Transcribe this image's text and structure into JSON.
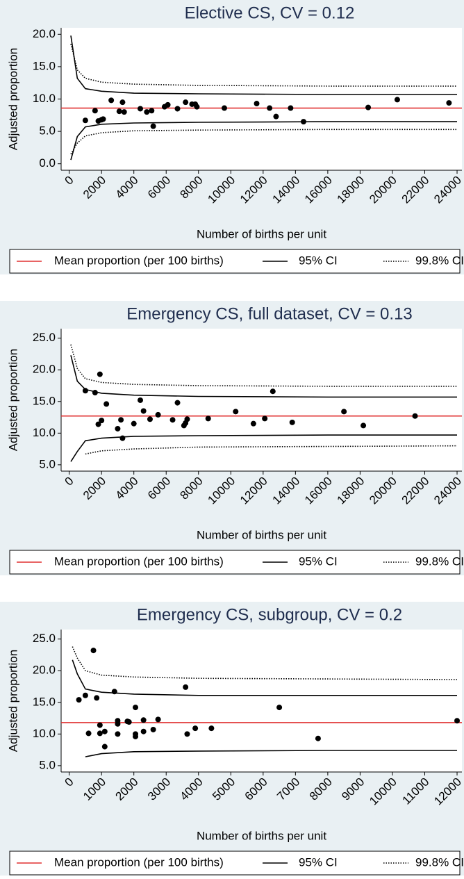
{
  "chart_data": [
    {
      "type": "funnel",
      "title": "Elective CS, CV = 0.12",
      "x_label": "Number of births per unit",
      "y_label": "Adjusted proportion",
      "xlim": [
        -500,
        24300
      ],
      "ylim": [
        -1,
        21
      ],
      "xticks": [
        0,
        2000,
        4000,
        6000,
        8000,
        10000,
        12000,
        14000,
        16000,
        18000,
        20000,
        22000,
        24000
      ],
      "yticks": [
        {
          "value": 0,
          "label": "0.0"
        },
        {
          "value": 5,
          "label": "5.0"
        },
        {
          "value": 10,
          "label": "10.0"
        },
        {
          "value": 15,
          "label": "15.0"
        },
        {
          "value": 20,
          "label": "20.0"
        }
      ],
      "points": {
        "color": "#000000",
        "x": [
          1000,
          1600,
          1800,
          2000,
          2100,
          2600,
          3100,
          3300,
          3400,
          4400,
          4800,
          5100,
          5200,
          5900,
          6100,
          6700,
          7200,
          7600,
          7800,
          7900,
          9600,
          11600,
          12400,
          12800,
          13700,
          14500,
          18500,
          20300,
          23500
        ],
        "y": [
          6.7,
          8.2,
          6.6,
          6.8,
          6.9,
          9.8,
          8.1,
          9.5,
          8.0,
          8.5,
          8.0,
          8.2,
          5.8,
          8.8,
          9.1,
          8.5,
          9.5,
          9.2,
          9.2,
          8.8,
          8.6,
          9.3,
          8.6,
          7.3,
          8.6,
          6.5,
          8.7,
          9.9,
          9.4
        ]
      },
      "series": [
        {
          "name": "Mean proportion (per 100 births)",
          "color": "#e03030",
          "dash": "solid",
          "value": 8.6
        },
        {
          "name": "95% CI",
          "color": "#000000",
          "dash": "solid",
          "x": [
            100,
            500,
            1000,
            2000,
            4000,
            8000,
            16000,
            24000
          ],
          "upper": [
            19.8,
            13.2,
            11.6,
            11.2,
            10.9,
            10.8,
            10.7,
            10.7
          ],
          "lower": [
            0.6,
            4.2,
            5.7,
            6.1,
            6.3,
            6.4,
            6.5,
            6.5
          ]
        },
        {
          "name": "99.8% CI",
          "color": "#000000",
          "dash": "dotted",
          "x": [
            100,
            500,
            1000,
            2000,
            4000,
            8000,
            16000,
            24000
          ],
          "upper": [
            18.5,
            14.5,
            13.2,
            12.6,
            12.3,
            12.1,
            12.0,
            12.0
          ],
          "lower": [
            1.5,
            3.2,
            4.3,
            4.8,
            5.1,
            5.2,
            5.3,
            5.3
          ]
        }
      ]
    },
    {
      "type": "funnel",
      "title": "Emergency CS, full dataset, CV = 0.13",
      "x_label": "Number of births per unit",
      "y_label": "Adjusted proportion",
      "xlim": [
        -500,
        24300
      ],
      "ylim": [
        4,
        26.5
      ],
      "xticks": [
        0,
        2000,
        4000,
        6000,
        8000,
        10000,
        12000,
        14000,
        16000,
        18000,
        20000,
        22000,
        24000
      ],
      "yticks": [
        {
          "value": 5,
          "label": "5.0"
        },
        {
          "value": 10,
          "label": "10.0"
        },
        {
          "value": 15,
          "label": "15.0"
        },
        {
          "value": 20,
          "label": "20.0"
        },
        {
          "value": 25,
          "label": "25.0"
        }
      ],
      "points": {
        "color": "#000000",
        "x": [
          1000,
          1600,
          1800,
          1900,
          2000,
          2300,
          3000,
          3200,
          3300,
          4000,
          4400,
          4600,
          5000,
          5500,
          6400,
          6700,
          7100,
          7200,
          7300,
          8600,
          10300,
          11400,
          12100,
          12600,
          13800,
          17000,
          18200,
          21400
        ],
        "y": [
          16.7,
          16.4,
          11.4,
          19.3,
          12.0,
          14.6,
          10.7,
          12.1,
          9.2,
          11.5,
          15.2,
          13.5,
          12.2,
          12.9,
          12.1,
          14.8,
          11.2,
          11.6,
          12.2,
          12.3,
          13.4,
          11.5,
          12.3,
          16.6,
          11.7,
          13.4,
          11.2,
          12.7
        ]
      },
      "series": [
        {
          "name": "Mean proportion (per 100 births)",
          "color": "#e03030",
          "dash": "solid",
          "value": 12.7
        },
        {
          "name": "95% CI",
          "color": "#000000",
          "dash": "solid",
          "x": [
            100,
            500,
            1000,
            2000,
            4000,
            8000,
            16000,
            24000
          ],
          "upper": [
            22.3,
            18.2,
            16.9,
            16.3,
            16.0,
            15.8,
            15.7,
            15.7
          ],
          "lower": [
            5.5,
            7.1,
            8.8,
            9.2,
            9.5,
            9.6,
            9.7,
            9.7
          ]
        },
        {
          "name": "99.8% CI",
          "color": "#000000",
          "dash": "dotted",
          "x": [
            100,
            500,
            1000,
            2000,
            4000,
            8000,
            16000,
            24000
          ],
          "upper": [
            24.0,
            20.2,
            18.6,
            18.0,
            17.7,
            17.5,
            17.4,
            17.4
          ],
          "lower": [
            null,
            null,
            6.7,
            7.2,
            7.5,
            7.8,
            7.9,
            8.0
          ]
        }
      ]
    },
    {
      "type": "funnel",
      "title": "Emergency CS, subgroup, CV = 0.2",
      "x_label": "Number of births per unit",
      "y_label": "Adjusted proportion",
      "xlim": [
        -250,
        12150
      ],
      "ylim": [
        4,
        26.5
      ],
      "xticks": [
        0,
        1000,
        2000,
        3000,
        4000,
        5000,
        6000,
        7000,
        8000,
        9000,
        10000,
        11000,
        12000
      ],
      "yticks": [
        {
          "value": 5,
          "label": "5.0"
        },
        {
          "value": 10,
          "label": "10.0"
        },
        {
          "value": 15,
          "label": "15.0"
        },
        {
          "value": 20,
          "label": "20.0"
        },
        {
          "value": 25,
          "label": "25.0"
        }
      ],
      "points": {
        "color": "#000000",
        "x": [
          300,
          500,
          600,
          750,
          850,
          950,
          950,
          1100,
          1100,
          1400,
          1500,
          1500,
          1500,
          1800,
          1850,
          2050,
          2050,
          2050,
          2300,
          2300,
          2600,
          2750,
          3600,
          3650,
          3900,
          4400,
          6500,
          7700,
          12000
        ],
        "y": [
          15.4,
          16.1,
          10.1,
          23.2,
          15.7,
          10.1,
          11.4,
          10.4,
          8.0,
          16.7,
          10.0,
          11.6,
          12.1,
          12.0,
          11.9,
          14.2,
          10.0,
          9.6,
          12.2,
          10.4,
          10.7,
          12.3,
          17.4,
          10.0,
          10.9,
          10.9,
          14.2,
          9.3,
          12.1
        ]
      },
      "series": [
        {
          "name": "Mean proportion (per 100 births)",
          "color": "#e03030",
          "dash": "solid",
          "value": 11.8
        },
        {
          "name": "95% CI",
          "color": "#000000",
          "dash": "solid",
          "x": [
            100,
            250,
            500,
            1000,
            2000,
            4000,
            8000,
            12000
          ],
          "upper": [
            21.7,
            19.5,
            17.1,
            16.6,
            16.3,
            16.1,
            16.1,
            16.1
          ],
          "lower": [
            null,
            null,
            6.4,
            6.9,
            7.2,
            7.3,
            7.4,
            7.4
          ]
        },
        {
          "name": "99.8% CI",
          "color": "#000000",
          "dash": "dotted",
          "x": [
            100,
            250,
            500,
            1000,
            2000,
            4000,
            8000,
            12000
          ],
          "upper": [
            23.8,
            22.0,
            20.0,
            19.3,
            19.0,
            18.8,
            18.7,
            18.6
          ]
        }
      ]
    }
  ]
}
